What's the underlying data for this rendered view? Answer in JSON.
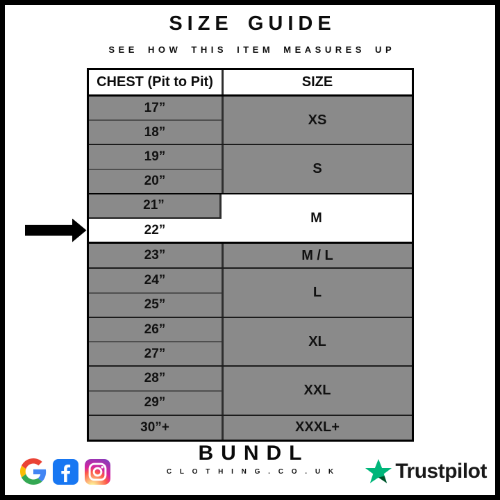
{
  "title": "SIZE GUIDE",
  "subtitle": "SEE HOW THIS ITEM MEASURES UP",
  "chart_data": {
    "type": "table",
    "columns": [
      "CHEST (Pit to Pit)",
      "SIZE"
    ],
    "groups": [
      {
        "chest": [
          "17”",
          "18”"
        ],
        "size": "XS"
      },
      {
        "chest": [
          "19”",
          "20”"
        ],
        "size": "S"
      },
      {
        "chest": [
          "21”",
          "22”"
        ],
        "size": "M",
        "highlighted": true,
        "arrow_chest": "22”"
      },
      {
        "chest": [
          "23”"
        ],
        "size": "M / L"
      },
      {
        "chest": [
          "24”",
          "25”"
        ],
        "size": "L"
      },
      {
        "chest": [
          "26”",
          "27”"
        ],
        "size": "XL"
      },
      {
        "chest": [
          "28”",
          "29”"
        ],
        "size": "XXL"
      },
      {
        "chest": [
          "30”+"
        ],
        "size": "XXXL+"
      }
    ],
    "highlight_note": "arrow marks 22” row, size M highlighted white"
  },
  "footer": {
    "brand": "BUNDL",
    "brand_domain": "C L O T H I N G . C O . U K",
    "social_icons": [
      "google-icon",
      "facebook-icon",
      "instagram-icon"
    ],
    "trustpilot": "Trustpilot"
  },
  "colors": {
    "row_gray": "#8a8a8a",
    "highlight_white": "#ffffff",
    "border_black": "#000000",
    "facebook_blue": "#1877f2",
    "trustpilot_green": "#00b67a",
    "trustpilot_dark_green": "#005128"
  }
}
